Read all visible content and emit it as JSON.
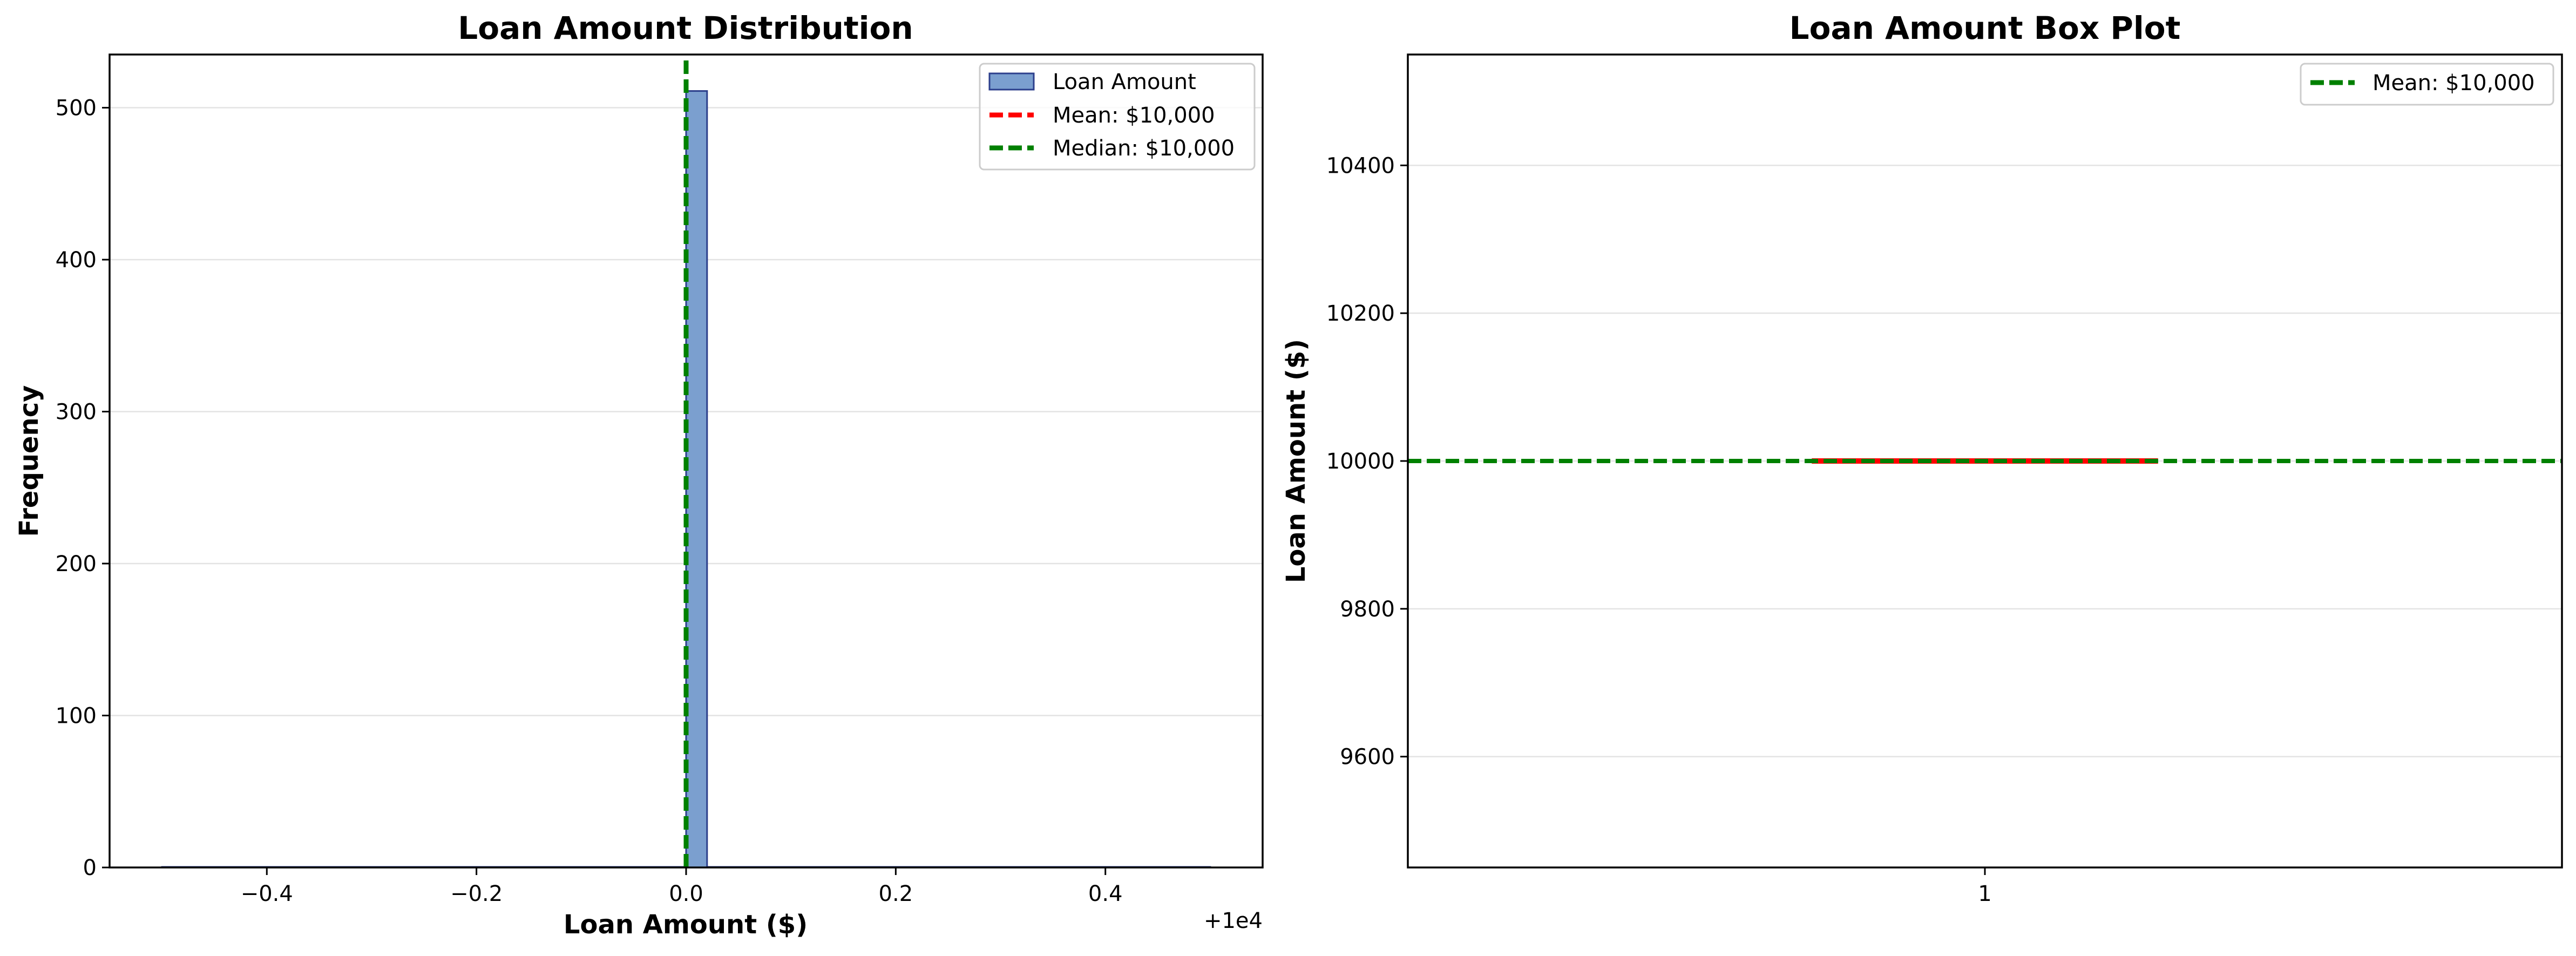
{
  "chart_data": [
    {
      "type": "histogram",
      "title": "Loan Amount Distribution",
      "xlabel": "Loan Amount ($)",
      "ylabel": "Frequency",
      "x_offset_label": "+1e4",
      "xlim": [
        -0.55,
        0.55
      ],
      "ylim": [
        0,
        535
      ],
      "xticks": [
        -0.4,
        -0.2,
        0.0,
        0.2,
        0.4
      ],
      "xtick_labels": [
        "−0.4",
        "−0.2",
        "0.0",
        "0.2",
        "0.4"
      ],
      "yticks": [
        0,
        100,
        200,
        300,
        400,
        500
      ],
      "ytick_labels": [
        "0",
        "100",
        "200",
        "300",
        "400",
        "500"
      ],
      "bins": {
        "start": -0.5,
        "end": 0.5,
        "count": 50
      },
      "bars": [
        {
          "x_start": 0.0,
          "x_end": 0.02,
          "value": 511
        }
      ],
      "series": [
        {
          "name": "Loan Amount",
          "kind": "bar",
          "color": "#7b9fcf",
          "edge": "#2c3f8c"
        }
      ],
      "lines": [
        {
          "name": "Mean: $10,000",
          "kind": "vline",
          "x": 0.0,
          "color": "#ff0000"
        },
        {
          "name": "Median: $10,000",
          "kind": "vline",
          "x": 0.0,
          "color": "#008000"
        }
      ],
      "grid": "y",
      "legend": "top-right"
    },
    {
      "type": "box",
      "title": "Loan Amount Box Plot",
      "xlabel": "",
      "ylabel": "Loan Amount ($)",
      "xlim": [
        0.5,
        1.5
      ],
      "ylim": [
        9450,
        10550
      ],
      "xticks": [
        1
      ],
      "xtick_labels": [
        "1"
      ],
      "yticks": [
        9600,
        9800,
        10000,
        10200,
        10400
      ],
      "ytick_labels": [
        "9600",
        "9800",
        "10000",
        "10200",
        "10400"
      ],
      "boxes": [
        {
          "position": 1,
          "min": 10000,
          "q1": 10000,
          "median": 10000,
          "q3": 10000,
          "max": 10000,
          "median_color": "#ff0000"
        }
      ],
      "lines": [
        {
          "name": "Mean: $10,000",
          "kind": "hline",
          "y": 10000,
          "color": "#008000"
        }
      ],
      "grid": "y",
      "legend": "top-right"
    }
  ]
}
